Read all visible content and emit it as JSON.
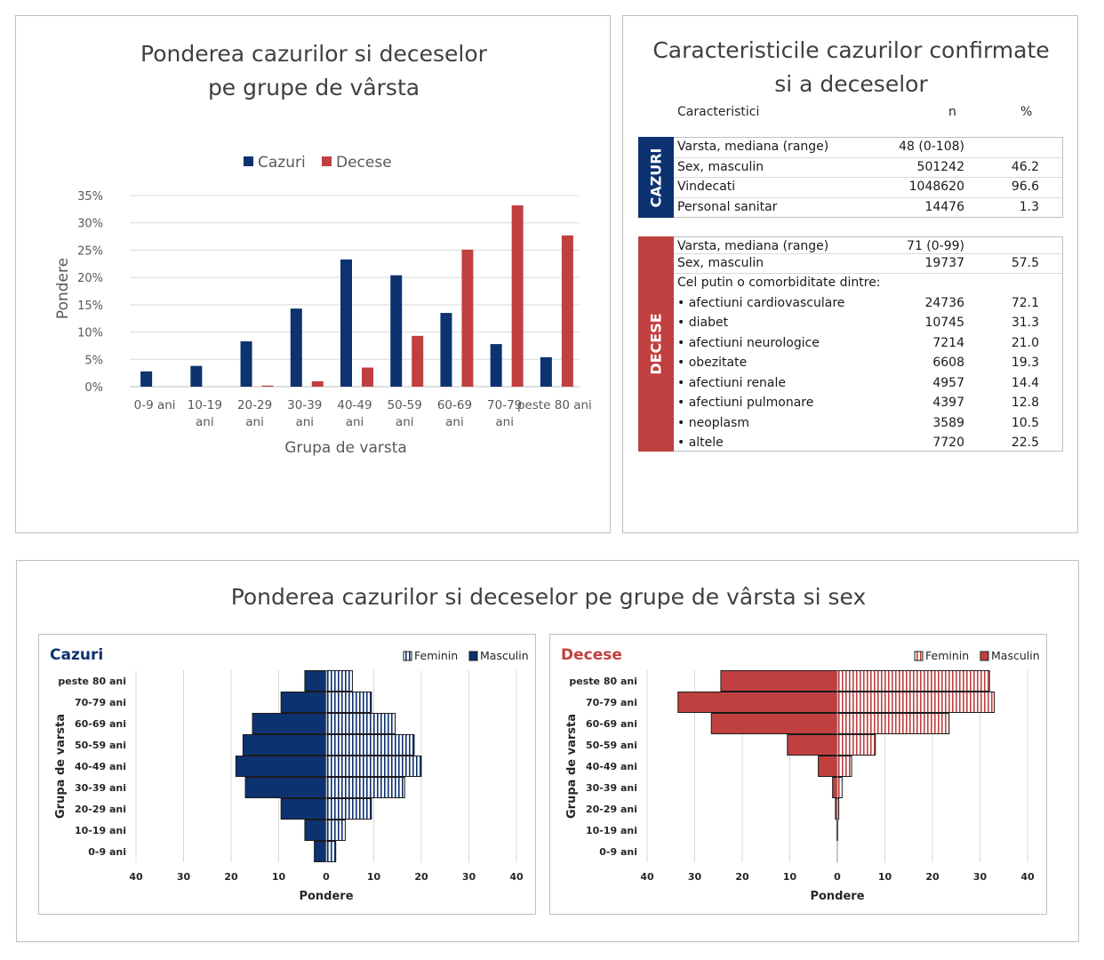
{
  "bar_panel": {
    "title_line1": "Ponderea cazurilor si deceselor",
    "title_line2": "pe grupe de vârsta"
  },
  "table_panel": {
    "title_line1": "Caracteristicile cazurilor confirmate",
    "title_line2": "si a deceselor",
    "headers": {
      "col1": "Caracteristici",
      "col2": "n",
      "col3": "%"
    },
    "cazuri": {
      "label": "CAZURI",
      "color": "#0d3270",
      "rows": [
        {
          "label": "Varsta, mediana (range)",
          "n": "48 (0-108)",
          "pct": ""
        },
        {
          "label": "Sex, masculin",
          "n": "501242",
          "pct": "46.2"
        },
        {
          "label": "Vindecati",
          "n": "1048620",
          "pct": "96.6"
        },
        {
          "label": "Personal sanitar",
          "n": "14476",
          "pct": "1.3"
        }
      ]
    },
    "decese": {
      "label": "DECESE",
      "color": "#c0403f",
      "rows": [
        {
          "label": "Varsta, mediana (range)",
          "n": "71 (0-99)",
          "pct": ""
        },
        {
          "label": "Sex, masculin",
          "n": "19737",
          "pct": "57.5"
        },
        {
          "label": "Cel putin o comorbiditate dintre:",
          "n": "",
          "pct": ""
        },
        {
          "label": "• afectiuni cardiovasculare",
          "n": "24736",
          "pct": "72.1"
        },
        {
          "label": "• diabet",
          "n": "10745",
          "pct": "31.3"
        },
        {
          "label": "• afectiuni neurologice",
          "n": "7214",
          "pct": "21.0"
        },
        {
          "label": "• obezitate",
          "n": "6608",
          "pct": "19.3"
        },
        {
          "label": "• afectiuni renale",
          "n": "4957",
          "pct": "14.4"
        },
        {
          "label": "• afectiuni pulmonare",
          "n": "4397",
          "pct": "12.8"
        },
        {
          "label": "• neoplasm",
          "n": "3589",
          "pct": "10.5"
        },
        {
          "label": "• altele",
          "n": "7720",
          "pct": "22.5"
        }
      ]
    }
  },
  "pyramid_panel": {
    "title": "Ponderea cazurilor si deceselor pe grupe de vârsta si sex"
  },
  "chart_data": [
    {
      "type": "bar",
      "xlabel": "Grupa de varsta",
      "ylabel": "Pondere",
      "categories": [
        "0-9 ani",
        "10-19 ani",
        "20-29 ani",
        "30-39 ani",
        "40-49 ani",
        "50-59 ani",
        "60-69 ani",
        "70-79 ani",
        "peste 80 ani"
      ],
      "series": [
        {
          "name": "Cazuri",
          "color": "#0d3270",
          "values": [
            2.8,
            3.8,
            8.3,
            14.3,
            23.3,
            20.4,
            13.5,
            7.8,
            5.4
          ]
        },
        {
          "name": "Decese",
          "color": "#c0403f",
          "values": [
            0.0,
            0.0,
            0.2,
            1.0,
            3.5,
            9.3,
            25.1,
            33.2,
            27.7
          ]
        }
      ],
      "ylim": [
        0,
        35
      ],
      "yticks": [
        "0%",
        "5%",
        "10%",
        "15%",
        "20%",
        "25%",
        "30%",
        "35%"
      ],
      "grid": true,
      "legend": "top-center"
    },
    {
      "type": "bar",
      "orientation": "horizontal-pyramid",
      "title": "Cazuri",
      "title_color": "#0d3270",
      "xlabel": "Pondere",
      "ylabel": "Grupa de varsta",
      "categories": [
        "peste 80 ani",
        "70-79 ani",
        "60-69 ani",
        "50-59 ani",
        "40-49 ani",
        "30-39 ani",
        "20-29 ani",
        "10-19 ani",
        "0-9 ani"
      ],
      "series": [
        {
          "name": "Feminin",
          "color": "#0d3270",
          "pattern": "hatched",
          "values": [
            5.5,
            9.5,
            14.5,
            18.5,
            20.0,
            16.5,
            9.5,
            4.0,
            2.0
          ]
        },
        {
          "name": "Masculin",
          "color": "#0d3270",
          "values": [
            4.5,
            9.5,
            15.5,
            17.5,
            19.0,
            17.0,
            9.5,
            4.5,
            2.5
          ]
        }
      ],
      "xlim": [
        -40,
        40
      ],
      "xticks": [
        "40",
        "30",
        "20",
        "10",
        "0",
        "10",
        "20",
        "30",
        "40"
      ],
      "legend": "top-right"
    },
    {
      "type": "bar",
      "orientation": "horizontal-pyramid",
      "title": "Decese",
      "title_color": "#c0403f",
      "xlabel": "Pondere",
      "ylabel": "Grupa de varsta",
      "categories": [
        "peste 80 ani",
        "70-79 ani",
        "60-69 ani",
        "50-59 ani",
        "40-49 ani",
        "30-39 ani",
        "20-29 ani",
        "10-19 ani",
        "0-9 ani"
      ],
      "series": [
        {
          "name": "Feminin",
          "color": "#c0403f",
          "pattern": "hatched",
          "values": [
            32.0,
            33.0,
            23.5,
            8.0,
            3.0,
            1.0,
            0.3,
            0.1,
            0.0
          ]
        },
        {
          "name": "Masculin",
          "color": "#c0403f",
          "values": [
            24.5,
            33.5,
            26.5,
            10.5,
            4.0,
            1.0,
            0.4,
            0.1,
            0.0
          ]
        }
      ],
      "xlim": [
        -40,
        40
      ],
      "xticks": [
        "40",
        "30",
        "20",
        "10",
        "0",
        "10",
        "20",
        "30",
        "40"
      ],
      "legend": "top-right"
    }
  ]
}
